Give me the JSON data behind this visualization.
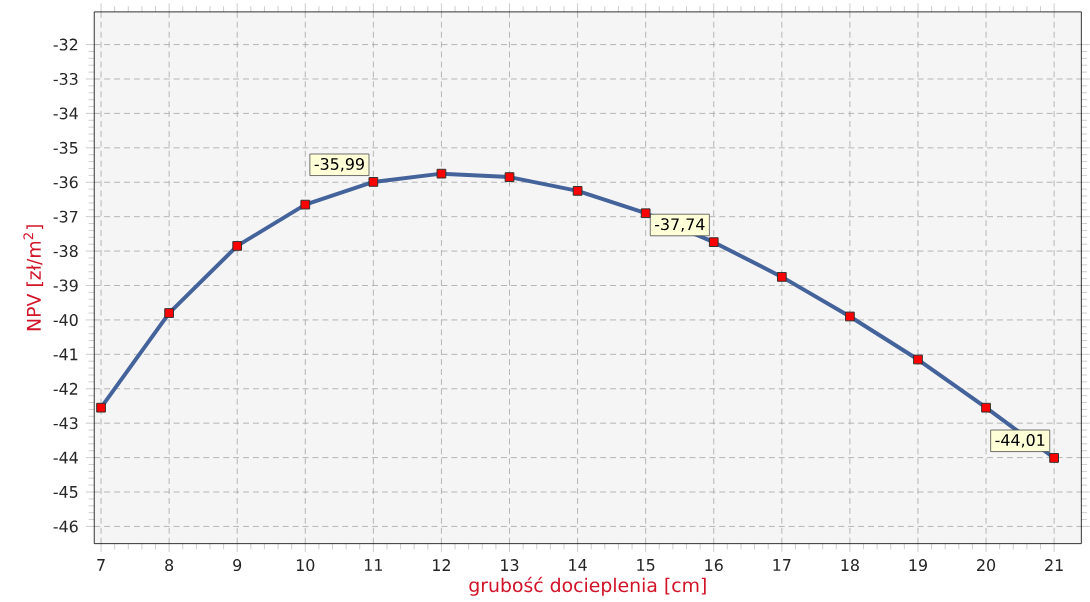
{
  "chart_data": {
    "type": "line",
    "xlabel": "grubość docieplenia [cm]",
    "ylabel": "NPV [zł/m$^{2}$]",
    "x": [
      7,
      8,
      9,
      10,
      11,
      12,
      13,
      14,
      15,
      16,
      17,
      18,
      19,
      20,
      21
    ],
    "series": [
      {
        "color": "#44639a",
        "values": [
          -42.55,
          -39.8,
          -37.85,
          -36.65,
          -35.99,
          -35.75,
          -35.85,
          -36.25,
          -36.9,
          -37.74,
          -38.75,
          -39.9,
          -41.15,
          -42.55,
          -44.01
        ],
        "value_labels": [
          null,
          null,
          null,
          null,
          "-35,99",
          null,
          null,
          null,
          null,
          "-37,74",
          null,
          null,
          null,
          null,
          "-44,01"
        ]
      }
    ],
    "xlim": [
      6.9,
      21.4
    ],
    "ylim": [
      -46.5,
      -31.05
    ],
    "xticks": [
      7,
      8,
      9,
      10,
      11,
      12,
      13,
      14,
      15,
      16,
      17,
      18,
      19,
      20,
      21
    ],
    "yticks": [
      -32,
      -33,
      -34,
      -35,
      -36,
      -37,
      -38,
      -39,
      -40,
      -41,
      -42,
      -43,
      -44,
      -45,
      -46
    ],
    "grid": true,
    "marker": "square",
    "line_style": "solid"
  }
}
